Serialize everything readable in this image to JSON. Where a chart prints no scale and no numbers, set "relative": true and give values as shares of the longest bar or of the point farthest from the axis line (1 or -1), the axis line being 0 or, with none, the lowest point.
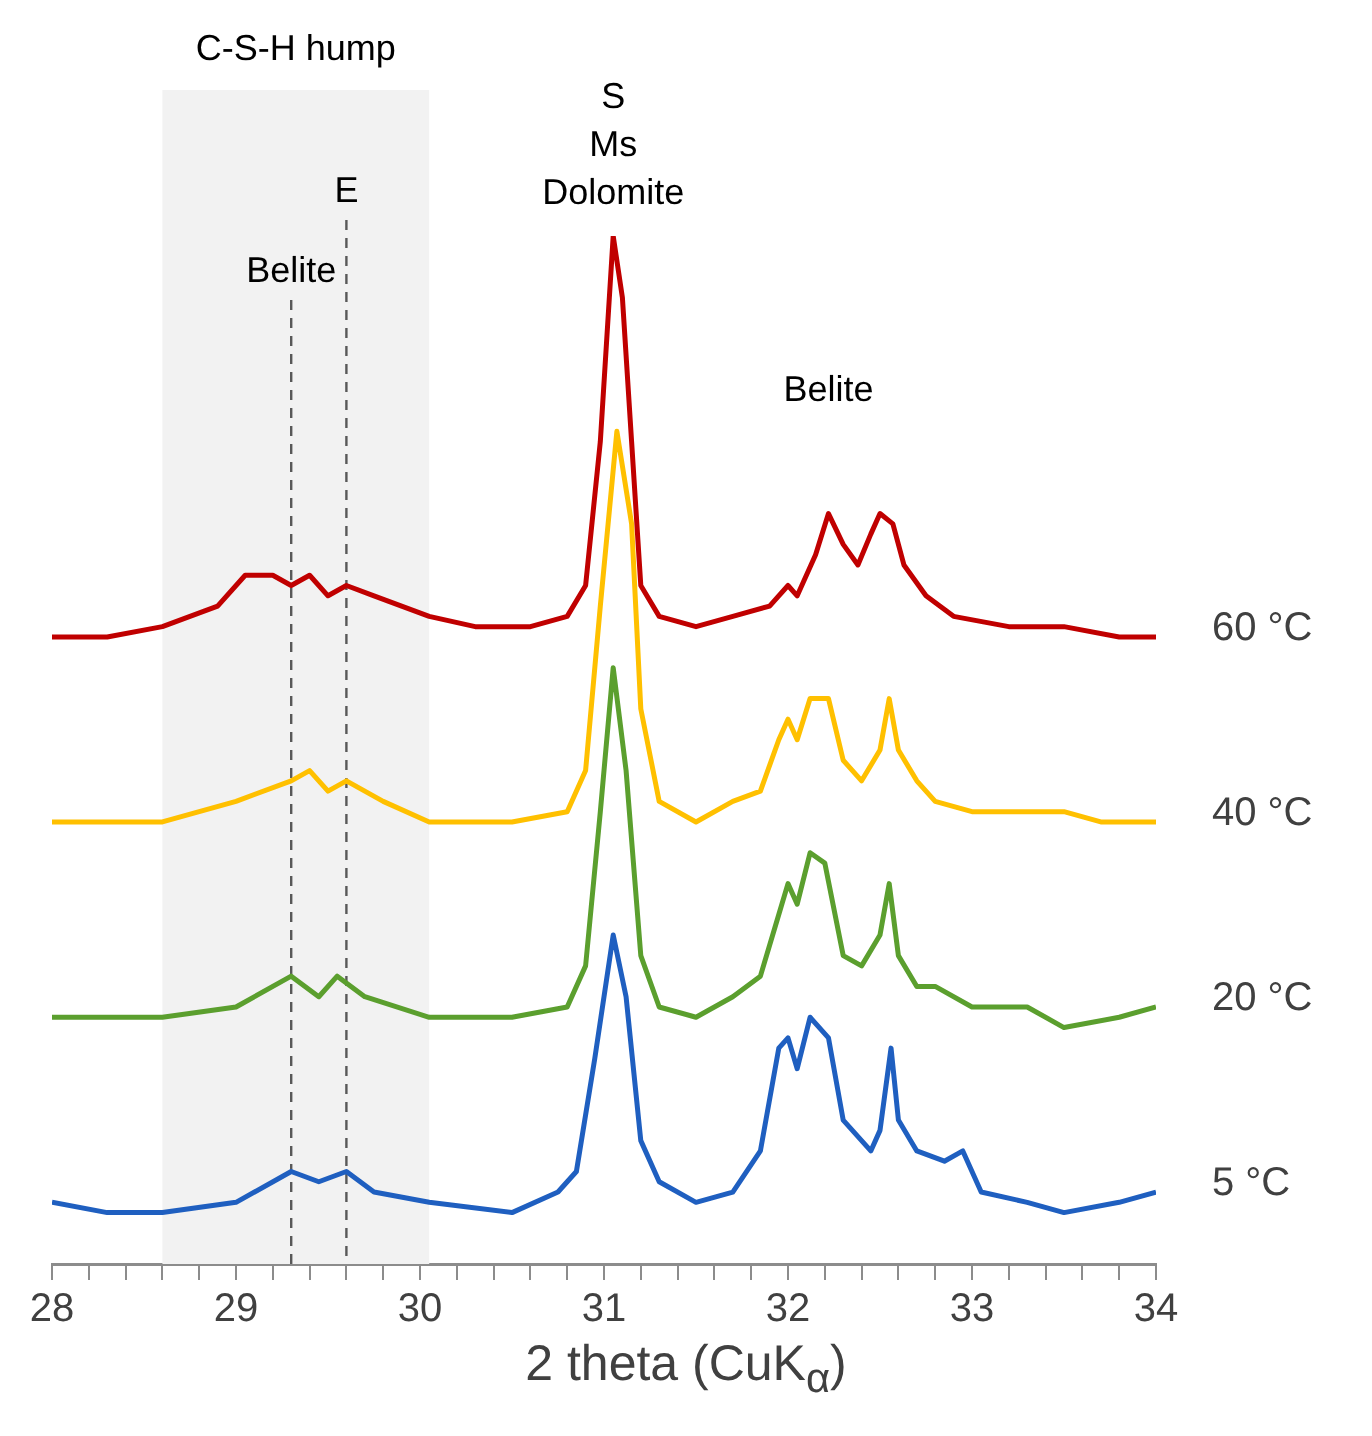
{
  "chart_data": {
    "type": "line",
    "relative": true,
    "xlabel": "2 theta (CuK$_{α}$)",
    "xlim": [
      28,
      34
    ],
    "xticks": [
      28,
      {
        "value": 28.2,
        "label": null
      },
      {
        "value": 28.4,
        "label": null
      },
      {
        "value": 28.6,
        "label": null
      },
      {
        "value": 28.8,
        "label": null
      },
      29,
      {
        "value": 29.2,
        "label": null
      },
      {
        "value": 29.4,
        "label": null
      },
      {
        "value": 29.6,
        "label": null
      },
      {
        "value": 29.8,
        "label": null
      },
      30,
      {
        "value": 30.2,
        "label": null
      },
      {
        "value": 30.4,
        "label": null
      },
      {
        "value": 30.6,
        "label": null
      },
      {
        "value": 30.8,
        "label": null
      },
      31,
      {
        "value": 31.2,
        "label": null
      },
      {
        "value": 31.4,
        "label": null
      },
      {
        "value": 31.6,
        "label": null
      },
      {
        "value": 31.8,
        "label": null
      },
      32,
      {
        "value": 32.2,
        "label": null
      },
      {
        "value": 32.4,
        "label": null
      },
      {
        "value": 32.6,
        "label": null
      },
      {
        "value": 32.8,
        "label": null
      },
      33,
      {
        "value": 33.2,
        "label": null
      },
      {
        "value": 33.4,
        "label": null
      },
      {
        "value": 33.6,
        "label": null
      },
      {
        "value": 33.8,
        "label": null
      },
      34
    ],
    "grid": false,
    "legend": false,
    "marker": "none",
    "line_style": "solid",
    "series": [
      {
        "name": "60 °C",
        "color": "#c00000",
        "x": [
          28.0,
          28.3,
          28.6,
          28.9,
          29.05,
          29.2,
          29.3,
          29.4,
          29.5,
          29.6,
          29.75,
          29.9,
          30.05,
          30.3,
          30.6,
          30.8,
          30.9,
          30.98,
          31.05,
          31.1,
          31.15,
          31.2,
          31.3,
          31.5,
          31.7,
          31.9,
          32.0,
          32.05,
          32.15,
          32.22,
          32.3,
          32.38,
          32.45,
          32.5,
          32.57,
          32.63,
          32.75,
          32.9,
          33.2,
          33.5,
          33.8,
          34.0
        ],
        "values": [
          0.61,
          0.61,
          0.62,
          0.64,
          0.67,
          0.67,
          0.66,
          0.67,
          0.65,
          0.66,
          0.65,
          0.64,
          0.63,
          0.62,
          0.62,
          0.63,
          0.66,
          0.8,
          1.0,
          0.94,
          0.8,
          0.66,
          0.63,
          0.62,
          0.63,
          0.64,
          0.66,
          0.65,
          0.69,
          0.73,
          0.7,
          0.68,
          0.71,
          0.73,
          0.72,
          0.68,
          0.65,
          0.63,
          0.62,
          0.62,
          0.61,
          0.61
        ]
      },
      {
        "name": "40 °C",
        "color": "#ffc000",
        "x": [
          28.0,
          28.3,
          28.6,
          29.0,
          29.3,
          29.4,
          29.5,
          29.6,
          29.8,
          30.05,
          30.5,
          30.8,
          30.9,
          30.98,
          31.07,
          31.15,
          31.2,
          31.3,
          31.5,
          31.7,
          31.85,
          31.95,
          32.0,
          32.05,
          32.12,
          32.22,
          32.3,
          32.4,
          32.5,
          32.55,
          32.6,
          32.7,
          32.8,
          33.0,
          33.3,
          33.5,
          33.7,
          34.0
        ],
        "values": [
          0.43,
          0.43,
          0.43,
          0.45,
          0.47,
          0.48,
          0.46,
          0.47,
          0.45,
          0.43,
          0.43,
          0.44,
          0.48,
          0.64,
          0.81,
          0.72,
          0.54,
          0.45,
          0.43,
          0.45,
          0.46,
          0.51,
          0.53,
          0.51,
          0.55,
          0.55,
          0.49,
          0.47,
          0.5,
          0.55,
          0.5,
          0.47,
          0.45,
          0.44,
          0.44,
          0.44,
          0.43,
          0.43
        ]
      },
      {
        "name": "20 °C",
        "color": "#5b9f2e",
        "x": [
          28.0,
          28.3,
          28.6,
          29.0,
          29.3,
          29.45,
          29.55,
          29.7,
          30.05,
          30.5,
          30.8,
          30.9,
          30.98,
          31.05,
          31.12,
          31.2,
          31.3,
          31.5,
          31.7,
          31.85,
          31.95,
          32.0,
          32.05,
          32.12,
          32.2,
          32.3,
          32.4,
          32.5,
          32.55,
          32.6,
          32.7,
          32.8,
          33.0,
          33.3,
          33.5,
          33.8,
          34.0
        ],
        "values": [
          0.24,
          0.24,
          0.24,
          0.25,
          0.28,
          0.26,
          0.28,
          0.26,
          0.24,
          0.24,
          0.25,
          0.29,
          0.44,
          0.58,
          0.48,
          0.3,
          0.25,
          0.24,
          0.26,
          0.28,
          0.34,
          0.37,
          0.35,
          0.4,
          0.39,
          0.3,
          0.29,
          0.32,
          0.37,
          0.3,
          0.27,
          0.27,
          0.25,
          0.25,
          0.23,
          0.24,
          0.25
        ]
      },
      {
        "name": "5 °C",
        "color": "#1f5fc0",
        "x": [
          28.0,
          28.3,
          28.6,
          29.0,
          29.3,
          29.45,
          29.6,
          29.75,
          30.05,
          30.5,
          30.75,
          30.85,
          30.95,
          31.05,
          31.12,
          31.2,
          31.3,
          31.5,
          31.7,
          31.85,
          31.95,
          32.0,
          32.05,
          32.12,
          32.22,
          32.3,
          32.45,
          32.5,
          32.56,
          32.6,
          32.7,
          32.85,
          32.95,
          33.05,
          33.3,
          33.5,
          33.8,
          34.0
        ],
        "values": [
          0.06,
          0.05,
          0.05,
          0.06,
          0.09,
          0.08,
          0.09,
          0.07,
          0.06,
          0.05,
          0.07,
          0.09,
          0.2,
          0.32,
          0.26,
          0.12,
          0.08,
          0.06,
          0.07,
          0.11,
          0.21,
          0.22,
          0.19,
          0.24,
          0.22,
          0.14,
          0.11,
          0.13,
          0.21,
          0.14,
          0.11,
          0.1,
          0.11,
          0.07,
          0.06,
          0.05,
          0.06,
          0.07
        ]
      }
    ],
    "bands": [
      {
        "axis": "x",
        "from": 28.6,
        "to": 30.05,
        "label": "C-S-H hump",
        "color": "#f2f2f2"
      }
    ],
    "ref_lines": [
      {
        "axis": "x",
        "value": 29.3,
        "label": "Belite",
        "color": "#595959",
        "line_style": "dashed"
      },
      {
        "axis": "x",
        "value": 29.6,
        "label": "E",
        "color": "#595959",
        "line_style": "dashed"
      }
    ],
    "annotations": [
      {
        "text": "S\nMs\nDolomite",
        "x": 31.05,
        "y": 1.0
      },
      {
        "text": "Belite",
        "x": 32.22,
        "y": 0.73
      }
    ]
  }
}
